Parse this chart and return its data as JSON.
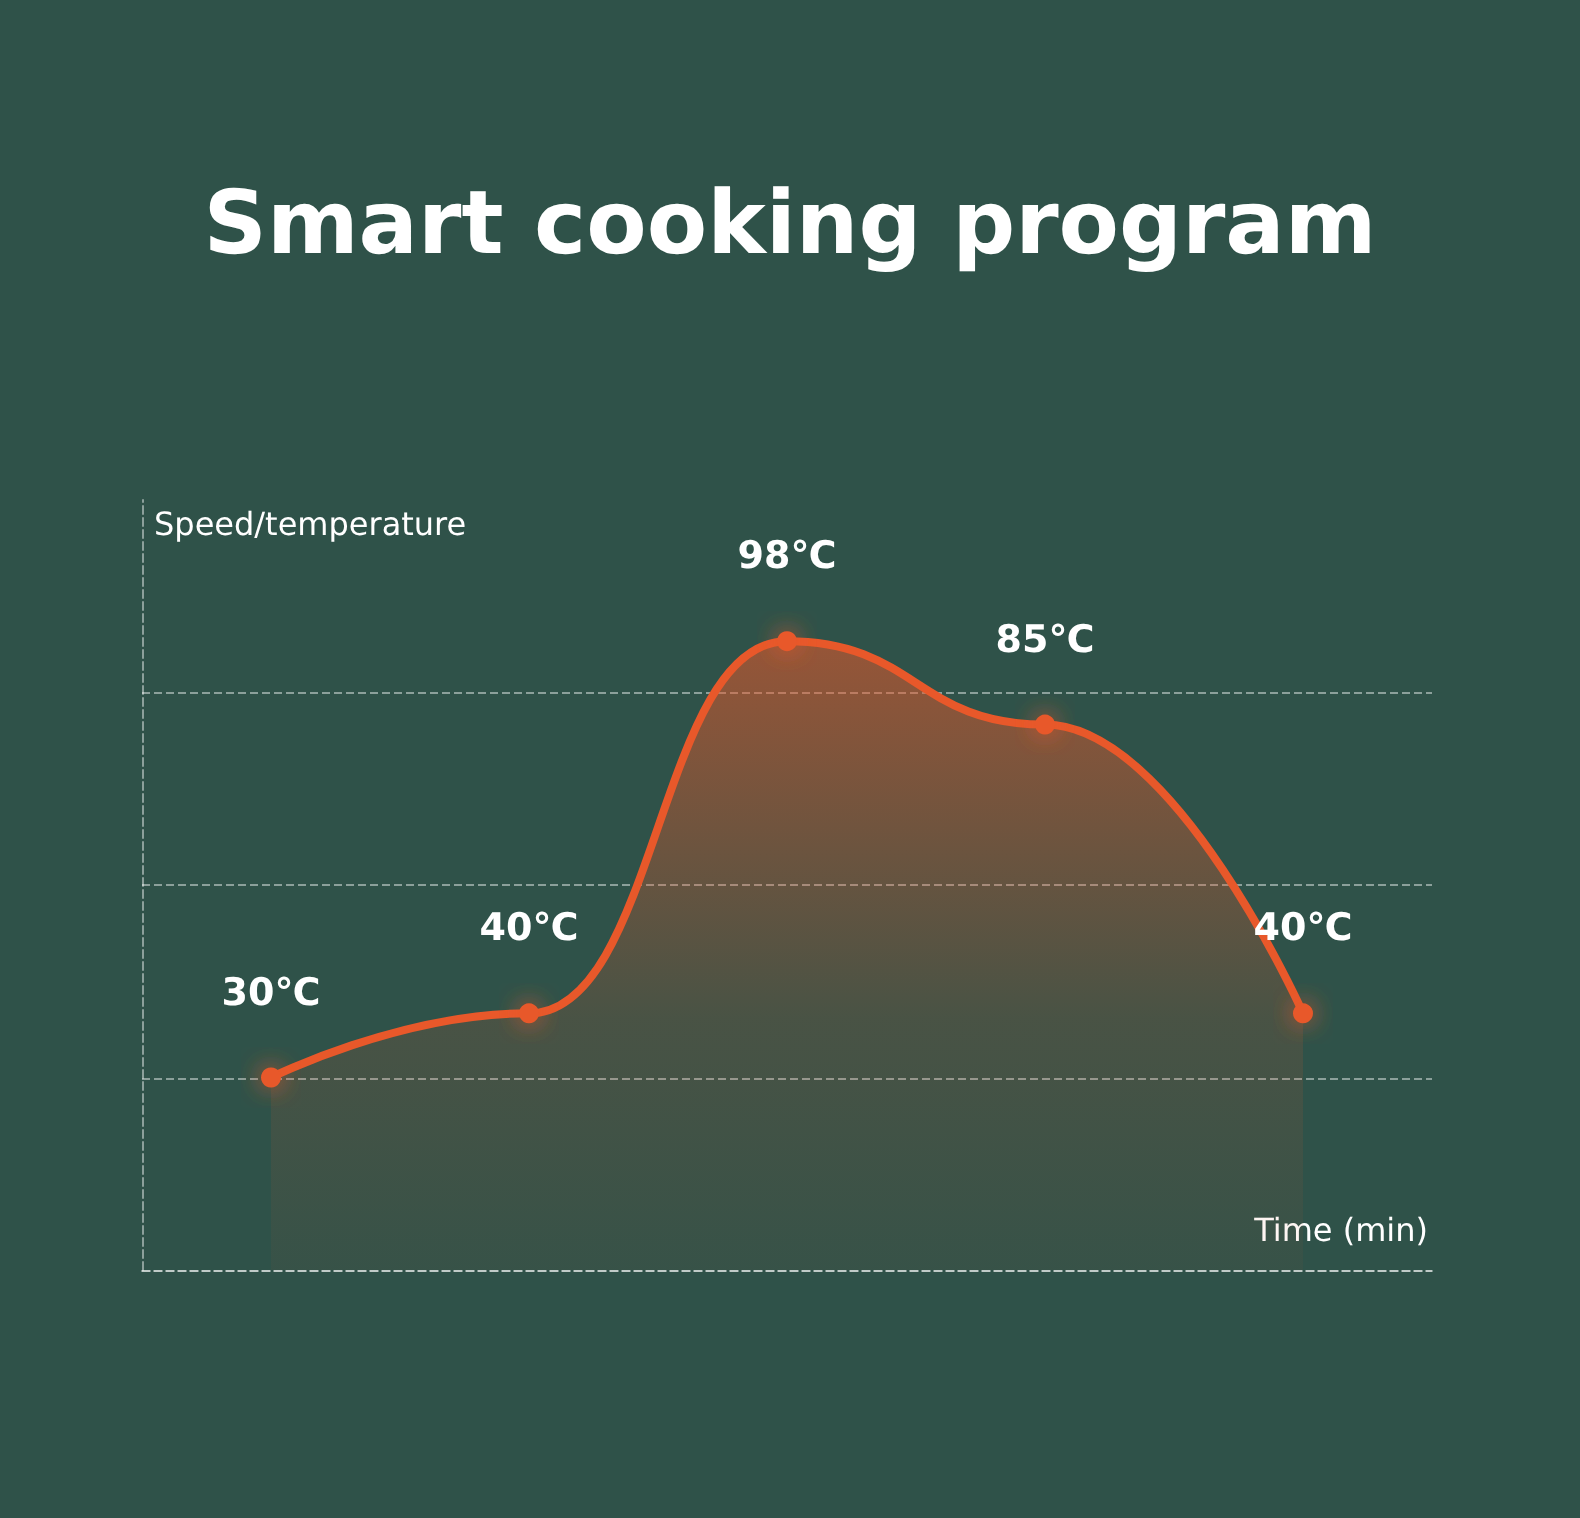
{
  "chart_data": {
    "type": "area",
    "title": "Smart cooking program",
    "ylabel": "Speed/temperature",
    "xlabel": "Time (min)",
    "categories": [
      null,
      null,
      null,
      null,
      null
    ],
    "series": [
      {
        "color": "#e8582a",
        "values": [
          30,
          40,
          98,
          85,
          40
        ],
        "value_labels": [
          "30℃",
          "40℃",
          "98℃",
          "85℃",
          "40℃"
        ]
      }
    ],
    "ylim": [
      0,
      120
    ],
    "yticks": [
      {
        "value": 0,
        "label": null
      },
      {
        "value": 30,
        "label": null
      },
      {
        "value": 60,
        "label": null
      },
      {
        "value": 90,
        "label": null
      }
    ],
    "grid": "y",
    "marker": "circle",
    "line_style": "solid"
  }
}
